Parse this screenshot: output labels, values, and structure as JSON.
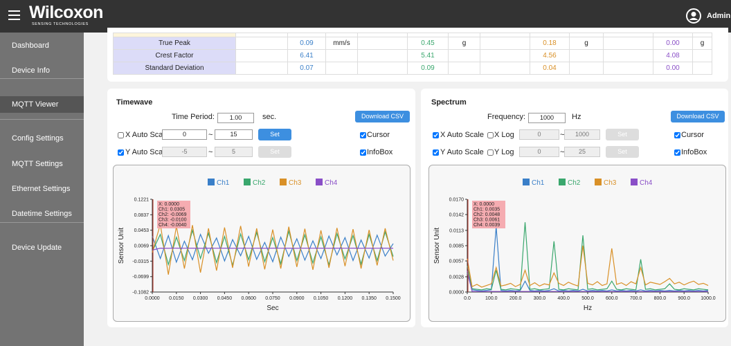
{
  "header": {
    "brand": "Wilcoxon",
    "tagline": "SENSING TECHNOLOGIES",
    "user": "Admin"
  },
  "nav": {
    "items": [
      "Dashboard",
      "Device Info",
      "MQTT Viewer",
      "Config Settings",
      "MQTT Settings",
      "Ethernet Settings",
      "Datetime Settings",
      "Device Update"
    ],
    "active": 2
  },
  "table": {
    "value_colors": [
      null,
      null,
      "#3a7fc8",
      null,
      null,
      "#3aa76d",
      null,
      null,
      "#d99027",
      null,
      null,
      "#8a4fc7",
      null
    ],
    "rows": [
      [
        "True Peak",
        null,
        "0.09",
        "mm/s",
        null,
        "0.45",
        "g",
        null,
        "0.18",
        "g",
        null,
        "0.00",
        "g"
      ],
      [
        "Crest Factor",
        null,
        "6.41",
        null,
        null,
        "5.41",
        null,
        null,
        "4.56",
        null,
        null,
        "4.08",
        null
      ],
      [
        "Standard Deviation",
        null,
        "0.07",
        null,
        null,
        "0.09",
        null,
        null,
        "0.04",
        null,
        null,
        "0.00",
        null
      ]
    ]
  },
  "timewave": {
    "title": "Timewave",
    "period_label": "Time Period:",
    "period": "1.00",
    "period_unit": "sec.",
    "download": "Download CSV",
    "x_auto": "X Auto Scale",
    "x_auto_checked": false,
    "x_min": "0",
    "sep": "~",
    "x_max": "15",
    "set": "Set",
    "cursor": "Cursor",
    "cursor_checked": true,
    "y_auto": "Y Auto Scale",
    "y_auto_checked": true,
    "y_min": "-5",
    "y_max": "5",
    "infobox": "InfoBox",
    "infobox_checked": true,
    "chart": {
      "type": "line",
      "ylabel": "Sensor Unit",
      "xlabel": "Sec",
      "x": [
        0,
        0.005,
        0.01,
        0.015,
        0.02,
        0.025,
        0.03,
        0.035,
        0.04,
        0.045,
        0.05,
        0.055,
        0.06,
        0.065,
        0.07,
        0.075,
        0.08,
        0.085,
        0.09,
        0.095,
        0.1,
        0.105,
        0.11,
        0.115,
        0.12,
        0.125,
        0.13,
        0.135,
        0.14,
        0.145,
        0.15
      ],
      "series": [
        {
          "name": "Ch1",
          "color": "#3a7fc8",
          "values": [
            0.0305,
            -0.025,
            0.032,
            -0.034,
            0.018,
            -0.028,
            0.035,
            -0.012,
            0.026,
            -0.031,
            0.022,
            -0.018,
            0.03,
            -0.027,
            0.015,
            -0.033,
            0.028,
            -0.02,
            0.024,
            -0.029,
            0.019,
            -0.025,
            0.031,
            -0.016,
            0.027,
            -0.03,
            0.021,
            -0.024,
            0.033,
            -0.019,
            0.012
          ]
        },
        {
          "name": "Ch2",
          "color": "#3aa76d",
          "values": [
            -0.0069,
            0.035,
            -0.04,
            0.028,
            -0.03,
            0.045,
            -0.025,
            0.038,
            -0.035,
            0.03,
            -0.042,
            0.036,
            -0.028,
            0.04,
            -0.033,
            0.027,
            -0.038,
            0.043,
            -0.03,
            0.034,
            -0.036,
            0.029,
            -0.041,
            0.037,
            -0.026,
            0.032,
            -0.039,
            0.035,
            -0.03,
            0.041,
            -0.02
          ]
        },
        {
          "name": "Ch3",
          "color": "#d99027",
          "values": [
            -0.01,
            0.06,
            -0.065,
            0.055,
            -0.05,
            0.058,
            -0.06,
            0.05,
            -0.055,
            0.052,
            -0.048,
            0.056,
            -0.045,
            0.05,
            -0.052,
            0.047,
            -0.05,
            0.054,
            -0.046,
            0.049,
            -0.053,
            0.045,
            -0.048,
            0.051,
            -0.044,
            0.048,
            -0.05,
            0.046,
            -0.042,
            0.05,
            -0.03
          ]
        },
        {
          "name": "Ch4",
          "color": "#8a4fc7",
          "values": [
            -0.004,
            0.0007,
            0.0005,
            0.0008,
            0.0006,
            0.0007,
            0.0005,
            0.0008,
            0.0006,
            0.0007,
            0.0005,
            0.0008,
            0.0006,
            0.0007,
            0.0005,
            0.0008,
            0.0006,
            0.0007,
            0.0005,
            0.0008,
            0.0006,
            0.0007,
            0.0005,
            0.0008,
            0.0006,
            0.0007,
            0.0005,
            0.0008,
            0.0006,
            0.0007,
            0.0005
          ]
        }
      ],
      "xlim": [
        0,
        0.15
      ],
      "ylim": [
        -0.1082,
        0.1221
      ],
      "xticks": [
        {
          "value": 0,
          "label": "0.0000"
        },
        {
          "value": 0.015,
          "label": "0.0150"
        },
        {
          "value": 0.03,
          "label": "0.0300"
        },
        {
          "value": 0.045,
          "label": "0.0450"
        },
        {
          "value": 0.06,
          "label": "0.0600"
        },
        {
          "value": 0.075,
          "label": "0.0750"
        },
        {
          "value": 0.09,
          "label": "0.0900"
        },
        {
          "value": 0.105,
          "label": "0.1050"
        },
        {
          "value": 0.12,
          "label": "0.1200"
        },
        {
          "value": 0.135,
          "label": "0.1350"
        },
        {
          "value": 0.15,
          "label": "0.1500"
        }
      ],
      "yticks": [
        -0.1082,
        -0.0699,
        -0.0315,
        0.0069,
        0.0453,
        0.0837,
        0.1221
      ],
      "infobox": [
        "X: 0.0000",
        "Ch1: 0.0305",
        "Ch2: -0.0069",
        "Ch3: -0.0100",
        "Ch4: -0.0040"
      ]
    }
  },
  "spectrum": {
    "title": "Spectrum",
    "freq_label": "Frequency:",
    "freq": "1000",
    "freq_unit": "Hz",
    "download": "Download CSV",
    "x_auto": "X Auto Scale",
    "x_auto_checked": true,
    "x_log": "X Log",
    "x_log_checked": false,
    "x_min": "0",
    "sep": "~",
    "x_max": "1000",
    "set": "Set",
    "cursor": "Cursor",
    "cursor_checked": true,
    "y_auto": "Y Auto Scale",
    "y_auto_checked": true,
    "y_log": "Y Log",
    "y_log_checked": false,
    "y_min": "0",
    "y_max": "25",
    "infobox": "InfoBox",
    "infobox_checked": true,
    "chart": {
      "type": "line",
      "ylabel": "Sensor Unit",
      "xlabel": "Hz",
      "x": [
        0,
        20,
        40,
        60,
        80,
        100,
        120,
        140,
        160,
        180,
        200,
        220,
        240,
        260,
        280,
        300,
        320,
        340,
        360,
        380,
        400,
        420,
        440,
        460,
        480,
        500,
        520,
        540,
        560,
        580,
        600,
        620,
        640,
        660,
        680,
        700,
        720,
        740,
        760,
        780,
        800,
        820,
        840,
        860,
        880,
        900,
        920,
        940,
        960,
        980,
        1000
      ],
      "series": [
        {
          "name": "Ch1",
          "color": "#3a7fc8",
          "values": [
            0.0035,
            0.0004,
            0.0003,
            0.0002,
            0.0003,
            0.0004,
            0.012,
            0.0003,
            0.0002,
            0.0003,
            0.0002,
            0.0003,
            0.002,
            0.0003,
            0.0002,
            0.0003,
            0.0002,
            0.0003,
            0.0006,
            0.0002,
            0.0003,
            0.0002,
            0.0003,
            0.0002,
            0.0005,
            0.0002,
            0.0003,
            0.0002,
            0.0003,
            0.0002,
            0.0004,
            0.0002,
            0.0003,
            0.0002,
            0.0003,
            0.0002,
            0.0004,
            0.0002,
            0.0003,
            0.0002,
            0.0003,
            0.0002,
            0.0003,
            0.0002,
            0.0003,
            0.0002,
            0.0003,
            0.0002,
            0.0003,
            0.0002,
            0.0003
          ]
        },
        {
          "name": "Ch2",
          "color": "#3aa76d",
          "values": [
            0.0048,
            0.0006,
            0.0005,
            0.0004,
            0.0006,
            0.0005,
            0.004,
            0.0005,
            0.0004,
            0.0006,
            0.0005,
            0.0004,
            0.0128,
            0.0005,
            0.0006,
            0.0004,
            0.0005,
            0.0006,
            0.0093,
            0.0005,
            0.0004,
            0.0006,
            0.0005,
            0.0004,
            0.0104,
            0.0005,
            0.0006,
            0.0004,
            0.0005,
            0.0006,
            0.002,
            0.0005,
            0.0004,
            0.0006,
            0.0005,
            0.0004,
            0.006,
            0.0005,
            0.0006,
            0.0004,
            0.0005,
            0.0006,
            0.0015,
            0.0005,
            0.0004,
            0.0006,
            0.0005,
            0.0004,
            0.0006,
            0.0005,
            0.0004
          ]
        },
        {
          "name": "Ch3",
          "color": "#d99027",
          "values": [
            0.0061,
            0.001,
            0.0014,
            0.0009,
            0.0012,
            0.0015,
            0.0045,
            0.0011,
            0.0013,
            0.0016,
            0.001,
            0.0014,
            0.004,
            0.0012,
            0.0017,
            0.0011,
            0.0015,
            0.0013,
            0.0035,
            0.0016,
            0.0012,
            0.0018,
            0.0014,
            0.0011,
            0.0085,
            0.0016,
            0.0013,
            0.0019,
            0.0012,
            0.0015,
            0.008,
            0.0014,
            0.0017,
            0.0012,
            0.0019,
            0.0015,
            0.0045,
            0.0013,
            0.0018,
            0.0016,
            0.0014,
            0.0019,
            0.0025,
            0.0015,
            0.0018,
            0.0013,
            0.0017,
            0.002,
            0.0014,
            0.0016,
            0.0012
          ]
        },
        {
          "name": "Ch4",
          "color": "#8a4fc7",
          "values": [
            0.0039,
            0.0001,
            0.0001,
            0.0001,
            0.0001,
            0.0001,
            0.0001,
            0.0001,
            0.0001,
            0.0001,
            0.0001,
            0.0001,
            0.0001,
            0.0001,
            0.0001,
            0.0001,
            0.0001,
            0.0001,
            0.0001,
            0.0001,
            0.0001,
            0.0001,
            0.0001,
            0.0001,
            0.0001,
            0.0001,
            0.0001,
            0.0001,
            0.0001,
            0.0001,
            0.0001,
            0.0001,
            0.0001,
            0.0001,
            0.0001,
            0.0001,
            0.0001,
            0.0001,
            0.0001,
            0.0001,
            0.0001,
            0.0001,
            0.0001,
            0.0001,
            0.0001,
            0.0001,
            0.0001,
            0.0001,
            0.0001,
            0.0001,
            0.0001
          ]
        }
      ],
      "xlim": [
        0,
        1000
      ],
      "ylim": [
        0,
        0.017
      ],
      "xticks": [
        {
          "value": 0,
          "label": "0.0"
        },
        {
          "value": 100,
          "label": "100.0"
        },
        {
          "value": 200,
          "label": "200.0"
        },
        {
          "value": 300,
          "label": "300.0"
        },
        {
          "value": 400,
          "label": "400.0"
        },
        {
          "value": 500,
          "label": "500.0"
        },
        {
          "value": 600,
          "label": "600.0"
        },
        {
          "value": 700,
          "label": "700.0"
        },
        {
          "value": 800,
          "label": "800.0"
        },
        {
          "value": 900,
          "label": "900.0"
        },
        {
          "value": 1000,
          "label": "1000.0"
        }
      ],
      "yticks": [
        {
          "value": 0,
          "label": "0.0000"
        },
        0.0028,
        0.0057,
        0.0085,
        0.0113,
        0.0142,
        {
          "value": 0.017,
          "label": "0.0170"
        }
      ],
      "infobox": [
        "X: 0.0000",
        "Ch1: 0.0035",
        "Ch2: 0.0048",
        "Ch3: 0.0061",
        "Ch4: 0.0039"
      ]
    }
  }
}
